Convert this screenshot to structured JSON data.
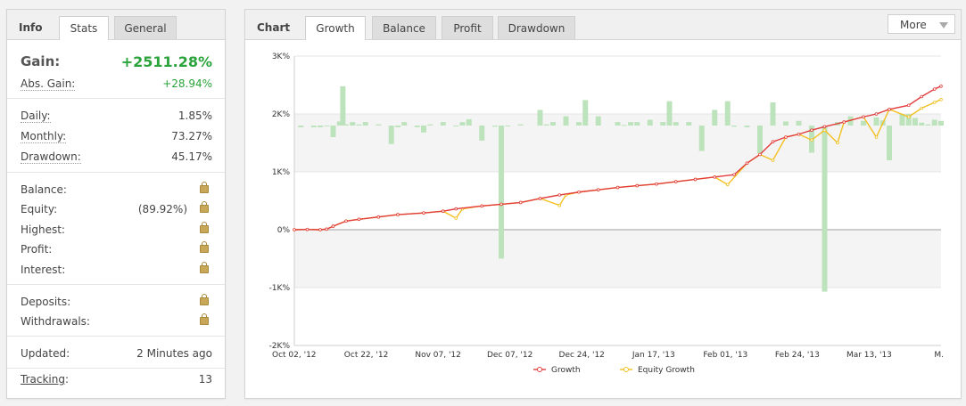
{
  "info": {
    "title": "Info",
    "tabs": [
      {
        "label": "Stats"
      },
      {
        "label": "General"
      }
    ],
    "gain": {
      "label": "Gain:",
      "value": "+2511.28%"
    },
    "abs_gain": {
      "label": "Abs. Gain:",
      "value": "+28.94%"
    },
    "daily": {
      "label": "Daily:",
      "value": "1.85%"
    },
    "monthly": {
      "label": "Monthly:",
      "value": "73.27%"
    },
    "drawdown": {
      "label": "Drawdown:",
      "value": "45.17%"
    },
    "balance": {
      "label": "Balance:"
    },
    "equity": {
      "label": "Equity:",
      "value": "(89.92%)"
    },
    "highest": {
      "label": "Highest:"
    },
    "profit": {
      "label": "Profit:"
    },
    "interest": {
      "label": "Interest:"
    },
    "deposits": {
      "label": "Deposits:"
    },
    "withdrawals": {
      "label": "Withdrawals:"
    },
    "updated": {
      "label": "Updated:",
      "value": "2 Minutes ago"
    },
    "tracking": {
      "label": "Tracking",
      "colon": ":",
      "value": "13"
    }
  },
  "chart_panel": {
    "title": "Chart",
    "tabs": [
      {
        "label": "Growth"
      },
      {
        "label": "Balance"
      },
      {
        "label": "Profit"
      },
      {
        "label": "Drawdown"
      }
    ],
    "more_label": "More"
  },
  "chart_data": {
    "type": "line",
    "y_ticks": [
      "3K%",
      "2K%",
      "1K%",
      "0%",
      "-1K%",
      "-2K%"
    ],
    "ylim": [
      -2000,
      3000
    ],
    "x_ticks": [
      "Oct 02, '12",
      "Oct 22, '12",
      "Nov 07, '12",
      "Dec 07, '12",
      "Dec 24, '12",
      "Jan 17, '13",
      "Feb 01, '13",
      "Feb 24, '13",
      "Mar 13, '13",
      "M."
    ],
    "grid": true,
    "legend_position": "bottom",
    "colors": {
      "growth": "#e23d3d",
      "equity": "#f2c020",
      "bars": "#bde3bd"
    },
    "series": [
      {
        "name": "Growth",
        "x": [
          0,
          0.02,
          0.04,
          0.05,
          0.06,
          0.08,
          0.1,
          0.13,
          0.16,
          0.2,
          0.23,
          0.25,
          0.29,
          0.32,
          0.35,
          0.38,
          0.41,
          0.44,
          0.47,
          0.5,
          0.53,
          0.56,
          0.59,
          0.62,
          0.65,
          0.68,
          0.7,
          0.72,
          0.74,
          0.76,
          0.78,
          0.8,
          0.82,
          0.85,
          0.88,
          0.9,
          0.92,
          0.95,
          0.97,
          0.99,
          1.0
        ],
        "y": [
          0,
          5,
          0,
          10,
          60,
          150,
          180,
          220,
          260,
          290,
          320,
          360,
          410,
          440,
          470,
          540,
          600,
          650,
          690,
          730,
          760,
          790,
          830,
          870,
          910,
          950,
          1150,
          1300,
          1520,
          1600,
          1650,
          1720,
          1780,
          1860,
          1950,
          2000,
          2080,
          2150,
          2300,
          2430,
          2480
        ]
      },
      {
        "name": "Equity Growth",
        "x": [
          0,
          0.02,
          0.04,
          0.05,
          0.06,
          0.08,
          0.1,
          0.13,
          0.16,
          0.2,
          0.23,
          0.25,
          0.26,
          0.29,
          0.32,
          0.35,
          0.38,
          0.41,
          0.42,
          0.44,
          0.47,
          0.5,
          0.53,
          0.56,
          0.59,
          0.62,
          0.65,
          0.67,
          0.7,
          0.72,
          0.74,
          0.76,
          0.78,
          0.8,
          0.82,
          0.84,
          0.85,
          0.88,
          0.9,
          0.92,
          0.95,
          0.97,
          0.99,
          1.0
        ],
        "y": [
          0,
          5,
          0,
          10,
          60,
          150,
          180,
          220,
          260,
          290,
          320,
          200,
          360,
          410,
          440,
          470,
          540,
          420,
          600,
          650,
          690,
          730,
          760,
          790,
          830,
          870,
          910,
          780,
          1150,
          1300,
          1200,
          1600,
          1650,
          1550,
          1720,
          1500,
          1860,
          1950,
          1600,
          2080,
          1950,
          2100,
          2200,
          2250
        ]
      },
      {
        "name": "Bars",
        "x": [
          0.01,
          0.03,
          0.04,
          0.05,
          0.06,
          0.07,
          0.075,
          0.08,
          0.09,
          0.1,
          0.11,
          0.13,
          0.15,
          0.16,
          0.17,
          0.19,
          0.2,
          0.21,
          0.23,
          0.25,
          0.26,
          0.27,
          0.29,
          0.31,
          0.32,
          0.33,
          0.35,
          0.38,
          0.39,
          0.4,
          0.42,
          0.44,
          0.45,
          0.47,
          0.5,
          0.51,
          0.52,
          0.53,
          0.55,
          0.57,
          0.58,
          0.59,
          0.61,
          0.63,
          0.65,
          0.67,
          0.68,
          0.7,
          0.72,
          0.74,
          0.76,
          0.78,
          0.8,
          0.82,
          0.84,
          0.86,
          0.88,
          0.9,
          0.91,
          0.92,
          0.94,
          0.95,
          0.96,
          0.97,
          0.98,
          0.99,
          1.0
        ],
        "y": [
          1770,
          1770,
          1770,
          1800,
          1600,
          1870,
          2480,
          1820,
          1860,
          1820,
          1860,
          1820,
          1480,
          1770,
          1860,
          1770,
          1680,
          1820,
          1860,
          1800,
          1860,
          1910,
          1540,
          1780,
          -500,
          1800,
          1820,
          2070,
          1820,
          1860,
          1960,
          1860,
          2240,
          1960,
          1860,
          1810,
          1860,
          1860,
          1900,
          1860,
          2220,
          1860,
          1860,
          1360,
          2070,
          2220,
          1780,
          1770,
          1320,
          2200,
          1870,
          1880,
          1330,
          -1070,
          1860,
          1960,
          1880,
          1940,
          1890,
          1200,
          2000,
          2000,
          1930,
          1850,
          1820,
          1900,
          1880
        ]
      }
    ],
    "legend": [
      {
        "label": "Growth"
      },
      {
        "label": "Equity Growth"
      }
    ]
  }
}
